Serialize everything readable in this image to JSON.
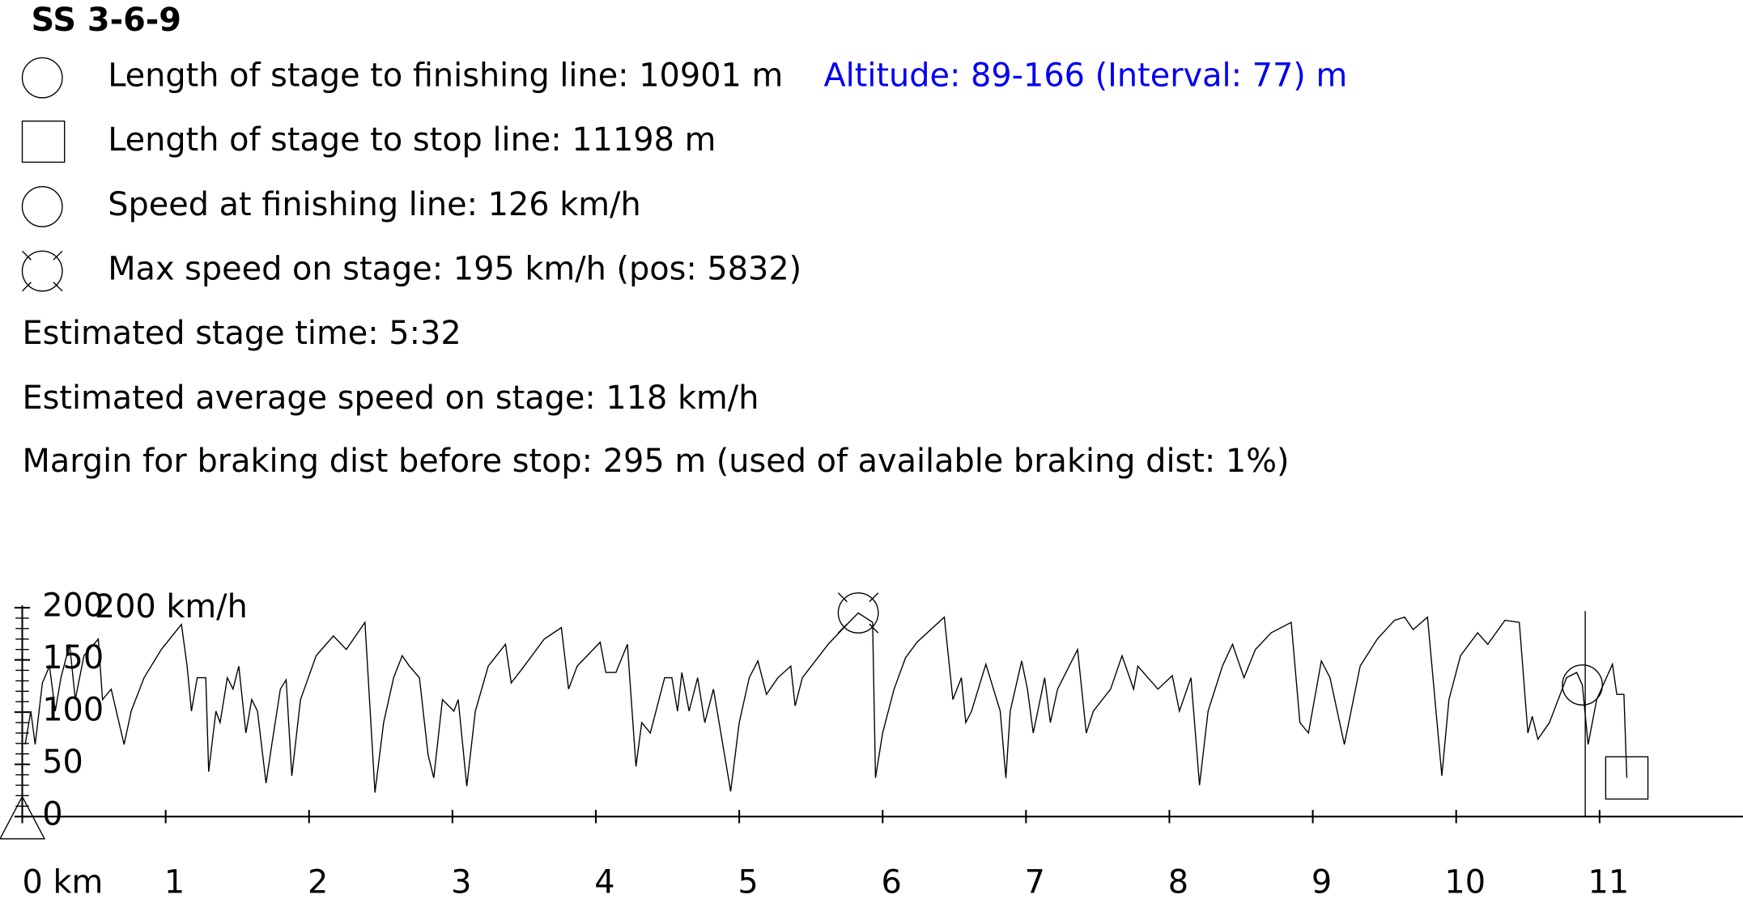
{
  "chart_data": {
    "type": "line",
    "title": "SS 3-6-9",
    "info": [
      "Length of stage to finishing line: 10901 m",
      "Length of stage to stop line: 11198 m",
      "Speed at finishing line: 126 km/h",
      "Max speed on stage: 195 km/h (pos: 5832)",
      "Estimated stage time: 5:32",
      "Estimated average speed on stage: 118 km/h",
      "Margin for braking dist before stop: 295 m (used of available braking dist: 1%)"
    ],
    "altitude_note": "Altitude: 89-166 (Interval: 77) m",
    "y_label": "200 km/h",
    "color": "#000000",
    "xlim": [
      0,
      12
    ],
    "ylim": [
      0,
      200
    ],
    "xticks": [
      {
        "value": 0,
        "label": "0 km"
      },
      1,
      2,
      3,
      4,
      5,
      6,
      7,
      8,
      9,
      10,
      11
    ],
    "yticks": [
      0,
      50,
      100,
      150,
      200
    ],
    "yminorticks": [
      0,
      10,
      20,
      30,
      40,
      50,
      60,
      70,
      80,
      90,
      100,
      110,
      120,
      130,
      140,
      150,
      160,
      170,
      180,
      190,
      200
    ],
    "markers": {
      "finish": {
        "x": 10.88,
        "value": 126
      },
      "stop": {
        "x": 11.19,
        "value": 37
      },
      "max": {
        "x": 5.83,
        "value": 195
      },
      "start": {
        "x": 0,
        "value": 0
      }
    },
    "finish_line": 10.9,
    "x": [
      0.02,
      0.06,
      0.09,
      0.14,
      0.19,
      0.23,
      0.27,
      0.33,
      0.37,
      0.43,
      0.53,
      0.56,
      0.62,
      0.71,
      0.76,
      0.85,
      0.97,
      1.11,
      1.15,
      1.18,
      1.22,
      1.28,
      1.3,
      1.35,
      1.38,
      1.43,
      1.47,
      1.51,
      1.56,
      1.6,
      1.64,
      1.7,
      1.74,
      1.8,
      1.84,
      1.88,
      1.94,
      2.05,
      2.17,
      2.26,
      2.39,
      2.46,
      2.52,
      2.59,
      2.65,
      2.7,
      2.77,
      2.83,
      2.87,
      2.93,
      3.01,
      3.04,
      3.1,
      3.16,
      3.25,
      3.37,
      3.41,
      3.5,
      3.64,
      3.76,
      3.81,
      3.87,
      4.03,
      4.07,
      4.14,
      4.22,
      4.28,
      4.32,
      4.38,
      4.48,
      4.53,
      4.57,
      4.6,
      4.65,
      4.71,
      4.76,
      4.82,
      4.86,
      4.94,
      5.0,
      5.07,
      5.13,
      5.19,
      5.27,
      5.36,
      5.39,
      5.44,
      5.62,
      5.73,
      5.83,
      5.93,
      5.95,
      6.0,
      6.08,
      6.16,
      6.24,
      6.43,
      6.49,
      6.55,
      6.58,
      6.62,
      6.72,
      6.82,
      6.86,
      6.89,
      6.97,
      7.01,
      7.05,
      7.13,
      7.17,
      7.22,
      7.36,
      7.42,
      7.47,
      7.59,
      7.67,
      7.75,
      7.78,
      7.92,
      8.02,
      8.07,
      8.15,
      8.21,
      8.27,
      8.37,
      8.44,
      8.52,
      8.6,
      8.71,
      8.85,
      8.91,
      8.97,
      9.06,
      9.12,
      9.22,
      9.33,
      9.45,
      9.57,
      9.64,
      9.7,
      9.8,
      9.9,
      9.95,
      10.03,
      10.15,
      10.22,
      10.34,
      10.44,
      10.5,
      10.53,
      10.57,
      10.65,
      10.77,
      10.84,
      10.88,
      10.92,
      10.98,
      11.09,
      11.12,
      11.17,
      11.19
    ],
    "values": [
      69,
      101,
      69,
      128,
      144,
      101,
      133,
      165,
      112,
      154,
      170,
      112,
      122,
      69,
      101,
      133,
      160,
      184,
      144,
      101,
      133,
      133,
      43,
      101,
      90,
      133,
      122,
      144,
      80,
      112,
      101,
      32,
      69,
      122,
      131,
      39,
      112,
      154,
      173,
      160,
      186,
      23,
      90,
      133,
      154,
      144,
      133,
      59,
      37,
      112,
      101,
      112,
      29,
      101,
      144,
      165,
      128,
      144,
      170,
      181,
      122,
      144,
      167,
      138,
      138,
      165,
      48,
      90,
      80,
      133,
      133,
      101,
      138,
      101,
      133,
      90,
      122,
      90,
      24,
      90,
      133,
      149,
      117,
      133,
      144,
      106,
      133,
      165,
      181,
      195,
      186,
      37,
      80,
      122,
      152,
      167,
      191,
      112,
      133,
      90,
      101,
      146,
      101,
      37,
      101,
      149,
      122,
      80,
      133,
      90,
      122,
      160,
      80,
      101,
      122,
      154,
      122,
      144,
      122,
      135,
      101,
      133,
      30,
      101,
      144,
      165,
      133,
      160,
      176,
      186,
      90,
      80,
      149,
      133,
      69,
      144,
      170,
      188,
      191,
      179,
      191,
      39,
      112,
      154,
      176,
      165,
      188,
      186,
      80,
      96,
      74,
      90,
      133,
      138,
      126,
      69,
      112,
      146,
      117,
      117,
      37
    ]
  }
}
